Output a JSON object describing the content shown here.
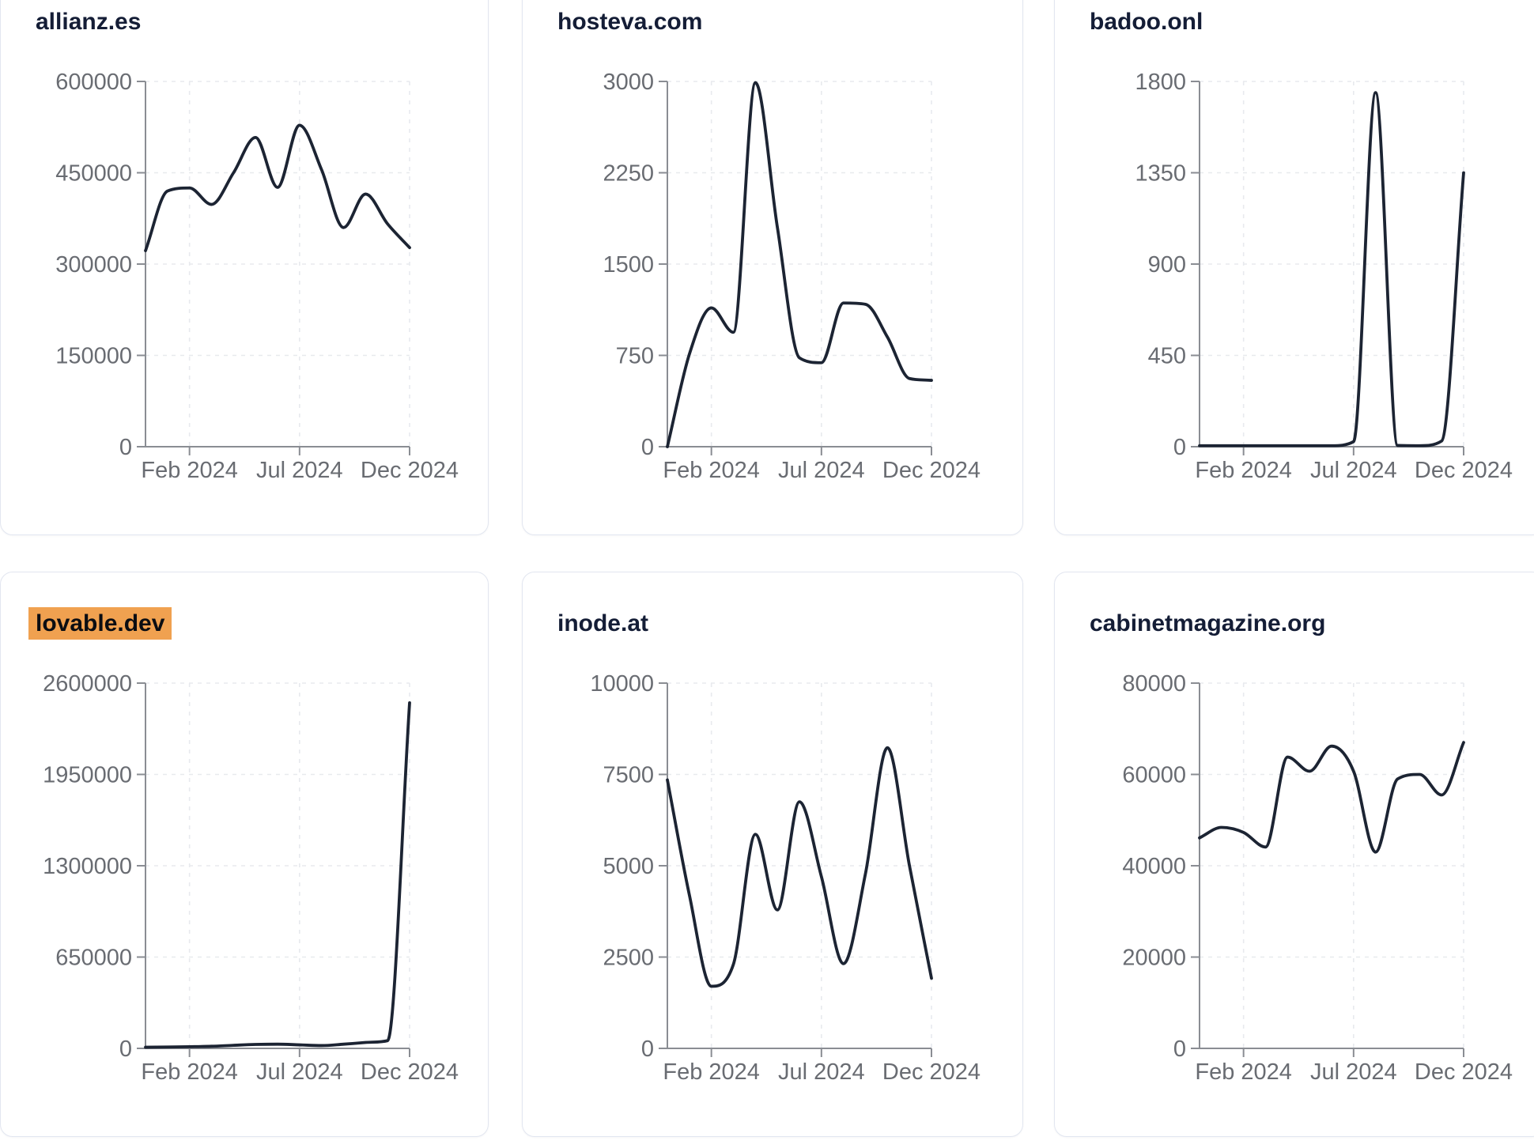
{
  "page": {
    "background": "#ffffff",
    "description": "Dashboard grid of six website traffic line charts for year 2024"
  },
  "style": {
    "line_color": "#1c2433",
    "axis_color": "#8a8d93",
    "label_color": "#696c72",
    "grid_color": "#e8eaee",
    "card_border": "#e2e6f0",
    "title_color": "#141d36",
    "highlight_bg": "#f0a150",
    "highlight_text": "#0b0d12"
  },
  "chart_data": [
    {
      "type": "line",
      "title": "allianz.es",
      "highlighted": false,
      "x": [
        0,
        1,
        2,
        3,
        4,
        5,
        6,
        7,
        8,
        9,
        10,
        11,
        12
      ],
      "x_tick_indices": [
        2,
        7,
        12
      ],
      "x_tick_labels": [
        "Feb 2024",
        "Jul 2024",
        "Dec 2024"
      ],
      "values": [
        322000,
        420000,
        425000,
        398000,
        450000,
        508000,
        426000,
        528000,
        455000,
        360000,
        415000,
        366000,
        327000
      ],
      "ylim": [
        0,
        600000
      ],
      "yticks": [
        0,
        150000,
        300000,
        450000,
        600000
      ],
      "ytick_labels": [
        "0",
        "150000",
        "300000",
        "450000",
        "600000"
      ],
      "grid": true,
      "legend": "none"
    },
    {
      "type": "line",
      "title": "hosteva.com",
      "highlighted": false,
      "x": [
        0,
        1,
        2,
        3,
        4,
        5,
        6,
        7,
        8,
        9,
        10,
        11,
        12
      ],
      "x_tick_indices": [
        2,
        7,
        12
      ],
      "x_tick_labels": [
        "Feb 2024",
        "Jul 2024",
        "Dec 2024"
      ],
      "values": [
        0,
        760,
        1140,
        940,
        2990,
        1800,
        730,
        690,
        1180,
        1170,
        900,
        560,
        545
      ],
      "ylim": [
        0,
        3000
      ],
      "yticks": [
        0,
        750,
        1500,
        2250,
        3000
      ],
      "ytick_labels": [
        "0",
        "750",
        "1500",
        "2250",
        "3000"
      ],
      "grid": true,
      "legend": "none"
    },
    {
      "type": "line",
      "title": "badoo.onl",
      "highlighted": false,
      "x": [
        0,
        1,
        2,
        3,
        4,
        5,
        6,
        7,
        8,
        9,
        10,
        11,
        12
      ],
      "x_tick_indices": [
        2,
        7,
        12
      ],
      "x_tick_labels": [
        "Feb 2024",
        "Jul 2024",
        "Dec 2024"
      ],
      "values": [
        5,
        5,
        5,
        5,
        5,
        5,
        5,
        25,
        1745,
        6,
        5,
        28,
        1350
      ],
      "ylim": [
        0,
        1800
      ],
      "yticks": [
        0,
        450,
        900,
        1350,
        1800
      ],
      "ytick_labels": [
        "0",
        "450",
        "900",
        "1350",
        "1800"
      ],
      "grid": true,
      "legend": "none"
    },
    {
      "type": "line",
      "title": "lovable.dev",
      "highlighted": true,
      "x": [
        0,
        1,
        2,
        3,
        4,
        5,
        6,
        7,
        8,
        9,
        10,
        11,
        12
      ],
      "x_tick_indices": [
        2,
        7,
        12
      ],
      "x_tick_labels": [
        "Feb 2024",
        "Jul 2024",
        "Dec 2024"
      ],
      "values": [
        8000,
        10000,
        12000,
        15000,
        22000,
        28000,
        30000,
        25000,
        20000,
        30000,
        42000,
        55000,
        2460000
      ],
      "ylim": [
        0,
        2600000
      ],
      "yticks": [
        0,
        650000,
        1300000,
        1950000,
        2600000
      ],
      "ytick_labels": [
        "0",
        "650000",
        "1300000",
        "1950000",
        "2600000"
      ],
      "grid": true,
      "legend": "none"
    },
    {
      "type": "line",
      "title": "inode.at",
      "highlighted": false,
      "x": [
        0,
        1,
        2,
        3,
        4,
        5,
        6,
        7,
        8,
        9,
        10,
        11,
        12
      ],
      "x_tick_indices": [
        2,
        7,
        12
      ],
      "x_tick_labels": [
        "Feb 2024",
        "Jul 2024",
        "Dec 2024"
      ],
      "values": [
        7350,
        4200,
        1700,
        2300,
        5860,
        3790,
        6750,
        4700,
        2320,
        4780,
        8230,
        5000,
        1920
      ],
      "ylim": [
        0,
        10000
      ],
      "yticks": [
        0,
        2500,
        5000,
        7500,
        10000
      ],
      "ytick_labels": [
        "0",
        "2500",
        "5000",
        "7500",
        "10000"
      ],
      "grid": true,
      "legend": "none"
    },
    {
      "type": "line",
      "title": "cabinetmagazine.org",
      "highlighted": false,
      "x": [
        0,
        1,
        2,
        3,
        4,
        5,
        6,
        7,
        8,
        9,
        10,
        11,
        12
      ],
      "x_tick_indices": [
        2,
        7,
        12
      ],
      "x_tick_labels": [
        "Feb 2024",
        "Jul 2024",
        "Dec 2024"
      ],
      "values": [
        46100,
        48400,
        47300,
        44100,
        63800,
        60700,
        66200,
        60700,
        43000,
        59000,
        60000,
        55500,
        67000
      ],
      "ylim": [
        0,
        80000
      ],
      "yticks": [
        0,
        20000,
        40000,
        60000,
        80000
      ],
      "ytick_labels": [
        "0",
        "20000",
        "40000",
        "60000",
        "80000"
      ],
      "grid": true,
      "legend": "none"
    }
  ]
}
